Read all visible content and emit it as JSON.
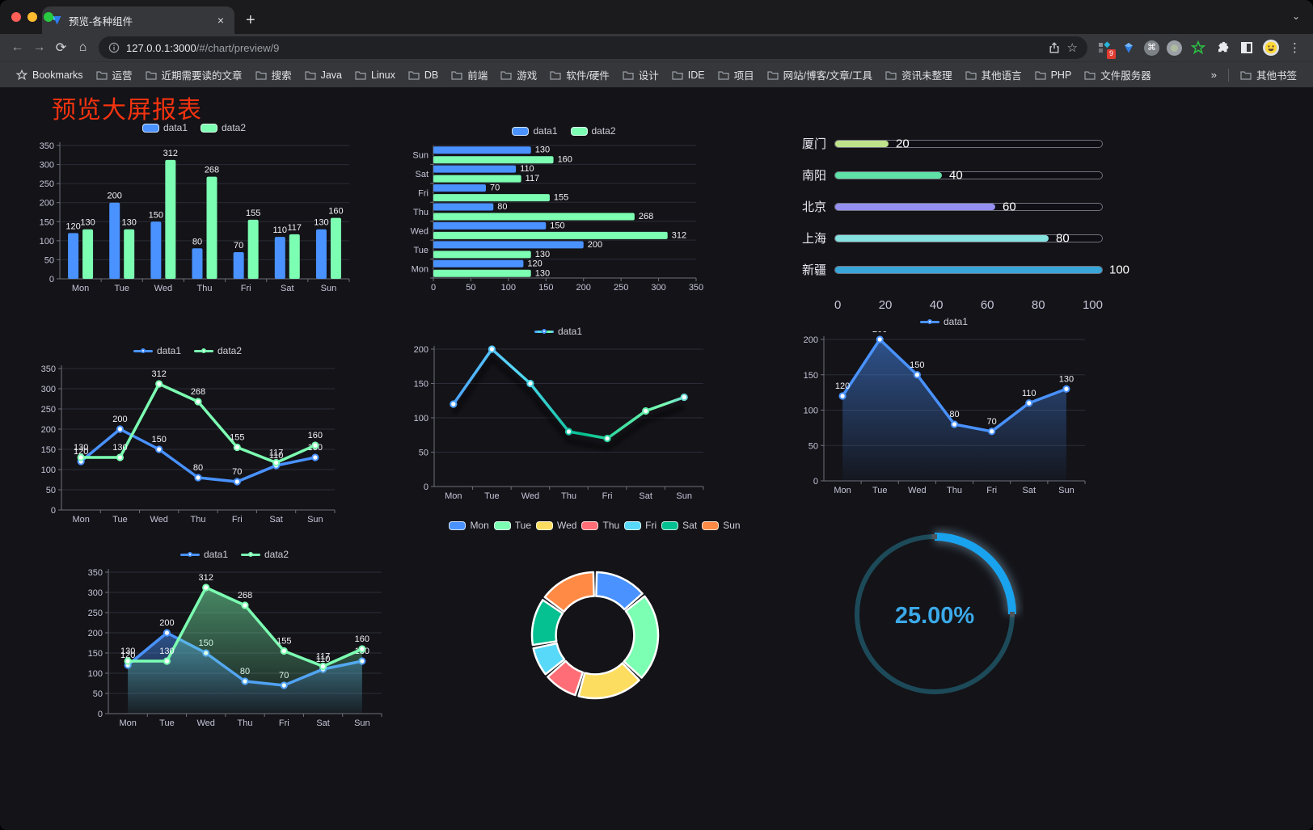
{
  "browser": {
    "tab": {
      "title": "预览-各种组件"
    },
    "url": {
      "host": "127.0.0.1:3000",
      "path": "/#/chart/preview/9"
    },
    "bookmarks_label": "Bookmarks",
    "bookmarks": [
      "运营",
      "近期需要读的文章",
      "搜索",
      "Java",
      "Linux",
      "DB",
      "前端",
      "游戏",
      "软件/硬件",
      "设计",
      "IDE",
      "项目",
      "网站/博客/文章/工具",
      "资讯未整理",
      "其他语言",
      "PHP",
      "文件服务器"
    ],
    "bookmarks_overflow": "»",
    "other_bookmarks": "其他书签",
    "extension_badge": "9"
  },
  "icons": {
    "back": "←",
    "forward": "→",
    "reload": "⟳",
    "home": "⌂",
    "star": "☆",
    "menu": "⋮",
    "close": "×",
    "newtab": "+",
    "chevron": "⌄",
    "command": "⌘"
  },
  "page": {
    "title": "预览大屏报表",
    "title_color": "#f5330f",
    "background": "#131318"
  },
  "theme": {
    "axis_color": "#6f6f7a",
    "grid_color": "#2c2c37",
    "tick_text_color": "#c6c5d8",
    "value_label_color": "#f2f2f6",
    "palette": [
      "#4992ff",
      "#7cffb2",
      "#fddd60",
      "#ff6e76",
      "#58d9f9",
      "#05c091",
      "#ff8a45"
    ]
  },
  "chart_data": [
    {
      "id": "grouped-bar",
      "type": "bar",
      "legend_position": "top",
      "grid": true,
      "value_labels": true,
      "categories": [
        "Mon",
        "Tue",
        "Wed",
        "Thu",
        "Fri",
        "Sat",
        "Sun"
      ],
      "series": [
        {
          "name": "data1",
          "color": "#4992ff",
          "values": [
            120,
            200,
            150,
            80,
            70,
            110,
            130
          ]
        },
        {
          "name": "data2",
          "color": "#7cffb2",
          "values": [
            130,
            130,
            312,
            268,
            155,
            117,
            160
          ]
        }
      ],
      "ylim": [
        0,
        350
      ],
      "yticks": [
        0,
        50,
        100,
        150,
        200,
        250,
        300,
        350
      ]
    },
    {
      "id": "horizontal-grouped-bar",
      "type": "bar",
      "orientation": "horizontal",
      "legend_position": "top",
      "value_labels": true,
      "categories": [
        "Mon",
        "Tue",
        "Wed",
        "Thu",
        "Fri",
        "Sat",
        "Sun"
      ],
      "series": [
        {
          "name": "data1",
          "color": "#4992ff",
          "values": [
            120,
            200,
            150,
            80,
            70,
            110,
            130
          ]
        },
        {
          "name": "data2",
          "color": "#7cffb2",
          "values": [
            130,
            130,
            312,
            268,
            155,
            117,
            160
          ]
        }
      ],
      "xlim": [
        0,
        350
      ],
      "xticks": [
        0,
        50,
        100,
        150,
        200,
        250,
        300,
        350
      ]
    },
    {
      "id": "city-progress",
      "type": "bar",
      "style": "progress",
      "orientation": "horizontal",
      "rows": [
        {
          "label": "厦门",
          "value": 20,
          "color": "#bfe38b"
        },
        {
          "label": "南阳",
          "value": 40,
          "color": "#5fe0a6"
        },
        {
          "label": "北京",
          "value": 60,
          "color": "#9590f0"
        },
        {
          "label": "上海",
          "value": 80,
          "color": "#86e2df"
        },
        {
          "label": "新疆",
          "value": 100,
          "color": "#38a6d8"
        }
      ],
      "xlim": [
        0,
        100
      ],
      "xticks": [
        0,
        20,
        40,
        60,
        80,
        100
      ]
    },
    {
      "id": "two-series-line",
      "type": "line",
      "legend_position": "top",
      "value_labels": true,
      "categories": [
        "Mon",
        "Tue",
        "Wed",
        "Thu",
        "Fri",
        "Sat",
        "Sun"
      ],
      "series": [
        {
          "name": "data1",
          "color": "#4992ff",
          "values": [
            120,
            200,
            150,
            80,
            70,
            110,
            130
          ]
        },
        {
          "name": "data2",
          "color": "#7cffb2",
          "values": [
            130,
            130,
            312,
            268,
            155,
            117,
            160
          ]
        }
      ],
      "ylim": [
        0,
        350
      ],
      "yticks": [
        0,
        50,
        100,
        150,
        200,
        250,
        300,
        350
      ]
    },
    {
      "id": "gradient-line",
      "type": "line",
      "legend_position": "top",
      "value_labels": false,
      "shadow": true,
      "categories": [
        "Mon",
        "Tue",
        "Wed",
        "Thu",
        "Fri",
        "Sat",
        "Sun"
      ],
      "series": [
        {
          "name": "data1",
          "gradient": [
            "#4992ff",
            "#58d9f9",
            "#05c091",
            "#7cffb2",
            "#5ab2f0"
          ],
          "gradient_stops": [
            0,
            0.3,
            0.55,
            0.85,
            1
          ],
          "values": [
            120,
            200,
            150,
            80,
            70,
            110,
            130
          ]
        }
      ],
      "ylim": [
        0,
        200
      ],
      "yticks": [
        0,
        50,
        100,
        150,
        200
      ]
    },
    {
      "id": "single-series-area",
      "type": "area",
      "legend_position": "top",
      "value_labels": true,
      "categories": [
        "Mon",
        "Tue",
        "Wed",
        "Thu",
        "Fri",
        "Sat",
        "Sun"
      ],
      "series": [
        {
          "name": "data1",
          "color": "#4992ff",
          "area": true,
          "values": [
            120,
            200,
            150,
            80,
            70,
            110,
            130
          ]
        }
      ],
      "ylim": [
        0,
        200
      ],
      "yticks": [
        0,
        50,
        100,
        150,
        200
      ]
    },
    {
      "id": "two-series-area",
      "type": "area",
      "legend_position": "top",
      "value_labels": true,
      "categories": [
        "Mon",
        "Tue",
        "Wed",
        "Thu",
        "Fri",
        "Sat",
        "Sun"
      ],
      "series": [
        {
          "name": "data1",
          "color": "#4992ff",
          "area": true,
          "values": [
            120,
            200,
            150,
            80,
            70,
            110,
            130
          ]
        },
        {
          "name": "data2",
          "color": "#7cffb2",
          "area": true,
          "values": [
            130,
            130,
            312,
            268,
            155,
            117,
            160
          ]
        }
      ],
      "ylim": [
        0,
        350
      ],
      "yticks": [
        0,
        50,
        100,
        150,
        200,
        250,
        300,
        350
      ]
    },
    {
      "id": "rounded-donut",
      "type": "pie",
      "legend_position": "top",
      "inner_radius": 0.62,
      "categories": [
        "Mon",
        "Tue",
        "Wed",
        "Thu",
        "Fri",
        "Sat",
        "Sun"
      ],
      "values": [
        120,
        200,
        150,
        80,
        70,
        110,
        130
      ],
      "colors": [
        "#4992ff",
        "#7cffb2",
        "#fddd60",
        "#ff6e76",
        "#58d9f9",
        "#05c091",
        "#ff8a45"
      ]
    },
    {
      "id": "progress-gauge",
      "type": "gauge",
      "value": 25,
      "max": 100,
      "label": "25.00%",
      "color": "#19a3ee",
      "track_color": "#1d4a59",
      "text_color": "#3ba9e8"
    }
  ]
}
